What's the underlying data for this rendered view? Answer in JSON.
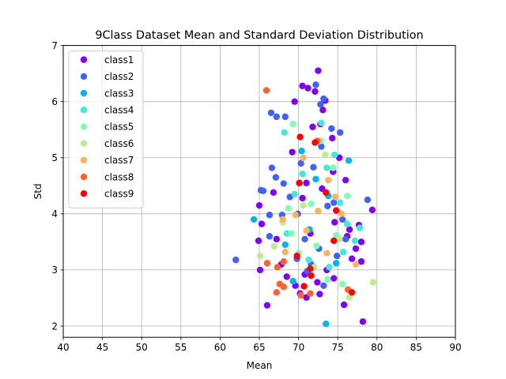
{
  "chart_data": {
    "type": "scatter",
    "title": "9Class Dataset Mean and Standard Deviation Distribution",
    "xlabel": "Mean",
    "ylabel": "Std",
    "xlim": [
      40,
      90
    ],
    "ylim": [
      1.8,
      7
    ],
    "xticks": [
      40,
      45,
      50,
      55,
      60,
      65,
      70,
      75,
      80,
      85,
      90
    ],
    "yticks": [
      2,
      3,
      4,
      5,
      6,
      7
    ],
    "grid": true,
    "legend_position": "top-left",
    "series": [
      {
        "name": "class1",
        "color": "#8000ff",
        "points": [
          [
            72.5,
            6.55
          ],
          [
            70.5,
            6.28
          ],
          [
            71.2,
            6.24
          ],
          [
            72.1,
            6.18
          ],
          [
            73.4,
            6.02
          ],
          [
            69.5,
            6.0
          ],
          [
            73.1,
            5.85
          ],
          [
            71.8,
            5.55
          ],
          [
            74.3,
            5.35
          ],
          [
            75.2,
            5.0
          ],
          [
            74.4,
            4.75
          ],
          [
            76.0,
            4.6
          ],
          [
            71.0,
            4.55
          ],
          [
            70.5,
            4.28
          ],
          [
            66.8,
            4.38
          ],
          [
            65.0,
            4.15
          ],
          [
            79.4,
            4.07
          ],
          [
            65.3,
            3.82
          ],
          [
            74.6,
            3.85
          ],
          [
            76.5,
            3.72
          ],
          [
            77.7,
            3.8
          ],
          [
            67.2,
            3.55
          ],
          [
            64.9,
            3.52
          ],
          [
            76.2,
            3.6
          ],
          [
            78.0,
            3.5
          ],
          [
            77.3,
            3.38
          ],
          [
            76.8,
            3.2
          ],
          [
            78.0,
            3.15
          ],
          [
            65.1,
            3.0
          ],
          [
            68.5,
            2.88
          ],
          [
            70.8,
            2.92
          ],
          [
            73.6,
            3.0
          ],
          [
            74.5,
            2.85
          ],
          [
            72.4,
            2.78
          ],
          [
            69.6,
            2.72
          ],
          [
            70.2,
            2.58
          ],
          [
            71.0,
            2.51
          ],
          [
            72.7,
            2.57
          ],
          [
            75.8,
            2.38
          ],
          [
            66.0,
            2.37
          ],
          [
            78.2,
            2.08
          ],
          [
            67.8,
            3.1
          ],
          [
            71.5,
            3.65
          ],
          [
            73.0,
            4.45
          ],
          [
            69.2,
            5.1
          ],
          [
            72.8,
            5.6
          ]
        ]
      },
      {
        "name": "class2",
        "color": "#4062fa",
        "points": [
          [
            67.2,
            5.73
          ],
          [
            66.5,
            5.8
          ],
          [
            68.3,
            5.73
          ],
          [
            72.2,
            6.3
          ],
          [
            73.2,
            6.05
          ],
          [
            72.8,
            5.95
          ],
          [
            66.6,
            4.82
          ],
          [
            67.1,
            4.65
          ],
          [
            68.1,
            4.54
          ],
          [
            65.2,
            4.42
          ],
          [
            65.5,
            4.41
          ],
          [
            66.3,
            3.98
          ],
          [
            67.9,
            3.98
          ],
          [
            78.8,
            4.25
          ],
          [
            62.0,
            3.18
          ],
          [
            66.3,
            3.6
          ],
          [
            70.8,
            3.55
          ],
          [
            72.6,
            3.38
          ],
          [
            74.9,
            3.25
          ],
          [
            76.0,
            3.55
          ],
          [
            71.9,
            4.83
          ],
          [
            74.2,
            5.52
          ],
          [
            75.3,
            5.45
          ],
          [
            73.7,
            4.14
          ],
          [
            69.9,
            4.0
          ],
          [
            71.1,
            2.98
          ],
          [
            73.2,
            2.72
          ],
          [
            69.8,
            3.2
          ],
          [
            75.6,
            3.9
          ],
          [
            72.9,
            5.2
          ],
          [
            70.3,
            4.9
          ],
          [
            68.9,
            4.3
          ],
          [
            74.5,
            4.2
          ],
          [
            71.6,
            3.1
          ]
        ]
      },
      {
        "name": "class3",
        "color": "#00b5eb",
        "points": [
          [
            64.3,
            3.9
          ],
          [
            73.5,
            2.04
          ],
          [
            68.3,
            3.45
          ],
          [
            72.2,
            4.62
          ],
          [
            76.4,
            4.95
          ],
          [
            70.4,
            5.12
          ],
          [
            74.8,
            3.12
          ],
          [
            69.3,
            2.8
          ],
          [
            71.4,
            3.72
          ],
          [
            73.8,
            4.32
          ]
        ]
      },
      {
        "name": "class4",
        "color": "#40ecd4",
        "points": [
          [
            68.2,
            5.45
          ],
          [
            72.9,
            5.62
          ],
          [
            73.6,
            4.82
          ],
          [
            70.5,
            4.71
          ],
          [
            75.3,
            4.2
          ],
          [
            76.2,
            3.82
          ],
          [
            77.2,
            3.52
          ],
          [
            77.8,
            3.75
          ],
          [
            68.5,
            3.65
          ],
          [
            71.3,
            3.18
          ],
          [
            73.9,
            3.05
          ],
          [
            75.7,
            3.32
          ],
          [
            72.5,
            4.05
          ],
          [
            69.5,
            4.35
          ],
          [
            74.6,
            5.05
          ]
        ]
      },
      {
        "name": "class5",
        "color": "#80ffb4",
        "points": [
          [
            69.3,
            5.6
          ],
          [
            72.8,
            5.3
          ],
          [
            76.2,
            4.32
          ],
          [
            74.8,
            3.62
          ],
          [
            69.1,
            3.65
          ],
          [
            72.3,
            3.43
          ],
          [
            73.7,
            2.83
          ],
          [
            75.6,
            2.75
          ],
          [
            70.0,
            3.3
          ],
          [
            71.6,
            4.18
          ],
          [
            74.4,
            4.82
          ],
          [
            68.7,
            4.1
          ]
        ]
      },
      {
        "name": "class6",
        "color": "#c0eb8d",
        "points": [
          [
            65.1,
            3.25
          ],
          [
            79.5,
            2.78
          ],
          [
            76.5,
            2.51
          ],
          [
            75.2,
            3.55
          ],
          [
            66.9,
            3.42
          ],
          [
            73.4,
            5.05
          ],
          [
            70.6,
            4.15
          ],
          [
            68.0,
            3.85
          ],
          [
            72.0,
            3.05
          ]
        ]
      },
      {
        "name": "class7",
        "color": "#ffb360",
        "points": [
          [
            68.0,
            3.9
          ],
          [
            68.3,
            3.32
          ],
          [
            71.0,
            3.7
          ],
          [
            69.6,
            3.98
          ],
          [
            74.7,
            4.3
          ],
          [
            75.5,
            4.0
          ],
          [
            73.8,
            4.6
          ],
          [
            73.6,
            3.3
          ],
          [
            77.3,
            3.1
          ],
          [
            70.6,
            5.0
          ],
          [
            72.5,
            4.05
          ]
        ]
      },
      {
        "name": "class8",
        "color": "#ff6230",
        "points": [
          [
            65.9,
            6.2
          ],
          [
            66.0,
            3.12
          ],
          [
            67.3,
            3.05
          ],
          [
            67.6,
            2.75
          ],
          [
            68.1,
            2.7
          ],
          [
            67.2,
            2.6
          ],
          [
            68.1,
            3.15
          ],
          [
            70.3,
            2.55
          ],
          [
            71.5,
            2.58
          ],
          [
            72.4,
            5.3
          ],
          [
            76.3,
            2.65
          ]
        ]
      },
      {
        "name": "class9",
        "color": "#ff0000",
        "points": [
          [
            70.2,
            5.37
          ],
          [
            72.1,
            5.27
          ],
          [
            70.1,
            4.55
          ],
          [
            74.8,
            4.06
          ],
          [
            74.5,
            3.52
          ],
          [
            70.7,
            2.71
          ],
          [
            76.8,
            2.6
          ],
          [
            71.6,
            2.9
          ],
          [
            69.8,
            3.25
          ],
          [
            73.5,
            4.38
          ],
          [
            71.5,
            3.02
          ]
        ]
      }
    ]
  }
}
